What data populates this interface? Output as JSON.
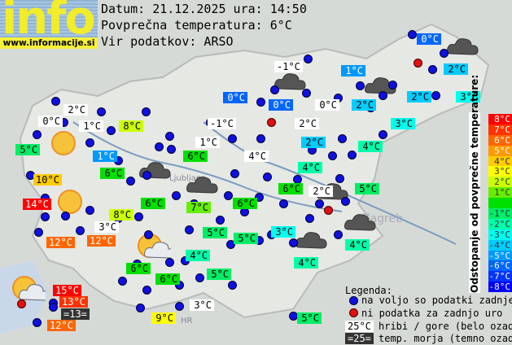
{
  "logo": {
    "text": "info",
    "url": "www.informacije.si"
  },
  "header": {
    "date_line": "Datum: 21.12.2025 ura: 14:50",
    "avg_line": "Povprečna temperatura: 6°C",
    "source_line": "Vir podatkov: ARSO"
  },
  "average_temperature": 6,
  "scale": {
    "title": "Odstopanje od povprečne temperature:",
    "bands": [
      {
        "label": "8°C",
        "color": "#ff0000"
      },
      {
        "label": "7°C",
        "color": "#ff3300"
      },
      {
        "label": "6°C",
        "color": "#ff6600"
      },
      {
        "label": "5°C",
        "color": "#ff9900"
      },
      {
        "label": "4°C",
        "color": "#ffcc00"
      },
      {
        "label": "3°C",
        "color": "#ffff00"
      },
      {
        "label": "2°C",
        "color": "#ccff00"
      },
      {
        "label": "1°C",
        "color": "#66ee00"
      },
      {
        "label": "",
        "color": "#00e000"
      },
      {
        "label": "-1°C",
        "color": "#00ee66"
      },
      {
        "label": "-2°C",
        "color": "#00ffaa"
      },
      {
        "label": "-3°C",
        "color": "#00ffee"
      },
      {
        "label": "-4°C",
        "color": "#00ccff"
      },
      {
        "label": "-5°C",
        "color": "#0099ff"
      },
      {
        "label": "-6°C",
        "color": "#0066ff"
      },
      {
        "label": "-7°C",
        "color": "#0033ff"
      },
      {
        "label": "-8°C",
        "color": "#0000ff"
      }
    ]
  },
  "legend": {
    "title": "Legenda:",
    "blue_dot": "na voljo so podatki zadnje ure",
    "red_dot": "ni podatka za zadnjo uro",
    "hill_sample": "25°C",
    "hill_text": "hribi / gore (belo ozadje)",
    "sea_sample": "=25=",
    "sea_text": "temp. morja (temno ozadje)"
  },
  "stations": [
    {
      "text": "0°C",
      "v": 0,
      "kind": "air"
    },
    {
      "text": "-1°C",
      "v": -1,
      "kind": "hill"
    },
    {
      "text": "1°C",
      "v": 1,
      "kind": "air"
    },
    {
      "text": "2°C",
      "v": 2,
      "kind": "air"
    },
    {
      "text": "0°C",
      "v": 0,
      "kind": "air"
    },
    {
      "text": "0°C",
      "v": 0,
      "kind": "air"
    },
    {
      "text": "0°C",
      "v": 0,
      "kind": "hill"
    },
    {
      "text": "2°C",
      "v": 2,
      "kind": "air"
    },
    {
      "text": "2°C",
      "v": 2,
      "kind": "air"
    },
    {
      "text": "3°C",
      "v": 3,
      "kind": "air"
    },
    {
      "text": "2°C",
      "v": 2,
      "kind": "hill"
    },
    {
      "text": "0°C",
      "v": 0,
      "kind": "hill"
    },
    {
      "text": "1°C",
      "v": 1,
      "kind": "hill"
    },
    {
      "text": "8°C",
      "v": 8,
      "kind": "air"
    },
    {
      "text": "-1°C",
      "v": -1,
      "kind": "hill"
    },
    {
      "text": "2°C",
      "v": 2,
      "kind": "hill"
    },
    {
      "text": "3°C",
      "v": 3,
      "kind": "air"
    },
    {
      "text": "5°C",
      "v": 5,
      "kind": "air"
    },
    {
      "text": "1°C",
      "v": 1,
      "kind": "air"
    },
    {
      "text": "1°C",
      "v": 1,
      "kind": "hill"
    },
    {
      "text": "6°C",
      "v": 6,
      "kind": "air"
    },
    {
      "text": "4°C",
      "v": 4,
      "kind": "hill"
    },
    {
      "text": "2°C",
      "v": 2,
      "kind": "air"
    },
    {
      "text": "4°C",
      "v": 4,
      "kind": "air"
    },
    {
      "text": "6°C",
      "v": 6,
      "kind": "air"
    },
    {
      "text": "4°C",
      "v": 4,
      "kind": "air"
    },
    {
      "text": "10°C",
      "v": 10,
      "kind": "air"
    },
    {
      "text": "6°C",
      "v": 6,
      "kind": "air"
    },
    {
      "text": "2°C",
      "v": 2,
      "kind": "hill"
    },
    {
      "text": "5°C",
      "v": 5,
      "kind": "air"
    },
    {
      "text": "14°C",
      "v": 14,
      "kind": "air"
    },
    {
      "text": "6°C",
      "v": 6,
      "kind": "air"
    },
    {
      "text": "7°C",
      "v": 7,
      "kind": "air"
    },
    {
      "text": "6°C",
      "v": 6,
      "kind": "air"
    },
    {
      "text": "8°C",
      "v": 8,
      "kind": "air"
    },
    {
      "text": "3°C",
      "v": 3,
      "kind": "hill"
    },
    {
      "text": "5°C",
      "v": 5,
      "kind": "air"
    },
    {
      "text": "3°C",
      "v": 3,
      "kind": "air"
    },
    {
      "text": "5°C",
      "v": 5,
      "kind": "air"
    },
    {
      "text": "12°C",
      "v": 12,
      "kind": "air"
    },
    {
      "text": "12°C",
      "v": 12,
      "kind": "air"
    },
    {
      "text": "4°C",
      "v": 4,
      "kind": "air"
    },
    {
      "text": "4°C",
      "v": 4,
      "kind": "air"
    },
    {
      "text": "6°C",
      "v": 6,
      "kind": "air"
    },
    {
      "text": "5°C",
      "v": 5,
      "kind": "air"
    },
    {
      "text": "4°C",
      "v": 4,
      "kind": "air"
    },
    {
      "text": "6°C",
      "v": 6,
      "kind": "air"
    },
    {
      "text": "15°C",
      "v": 15,
      "kind": "air"
    },
    {
      "text": "13°C",
      "v": 13,
      "kind": "air"
    },
    {
      "text": "=13=",
      "v": 13,
      "kind": "sea"
    },
    {
      "text": "3°C",
      "v": 3,
      "kind": "hill"
    },
    {
      "text": "9°C",
      "v": 9,
      "kind": "air"
    },
    {
      "text": "12°C",
      "v": 12,
      "kind": "air"
    },
    {
      "text": "5°C",
      "v": 5,
      "kind": "air"
    }
  ],
  "map_places": [
    "Ljubljana",
    "Zagreb",
    "HR"
  ]
}
